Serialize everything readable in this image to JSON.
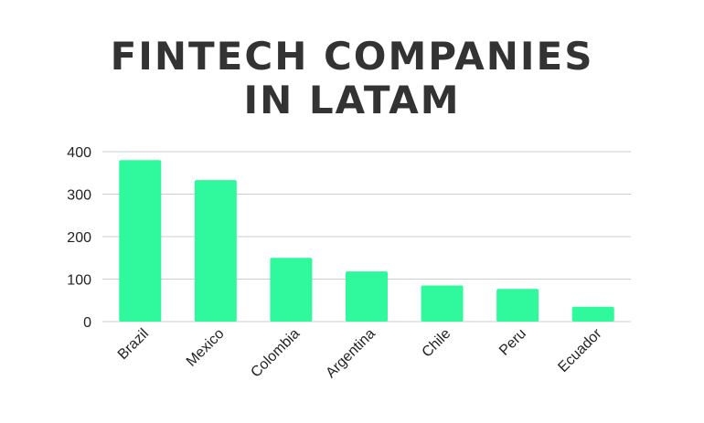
{
  "title_lines": [
    "FINTECH COMPANIES",
    "IN LATAM"
  ],
  "colors": {
    "bar": "#2ff99c",
    "grid": "#cccccc",
    "text": "#333333"
  },
  "chart_data": {
    "type": "bar",
    "title": "FINTECH COMPANIES IN LATAM",
    "categories": [
      "Brazil",
      "Mexico",
      "Colombia",
      "Argentina",
      "Chile",
      "Peru",
      "Ecuador"
    ],
    "values": [
      380,
      333,
      150,
      118,
      85,
      77,
      35
    ],
    "xlabel": "",
    "ylabel": "",
    "ylim": [
      0,
      400
    ],
    "yticks": [
      0,
      100,
      200,
      300,
      400
    ],
    "grid": true,
    "legend": "none"
  }
}
